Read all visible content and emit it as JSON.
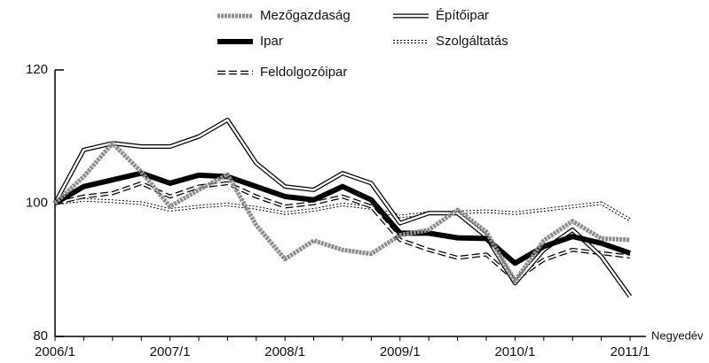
{
  "chart_data": {
    "type": "line",
    "x_label": "Negyedév",
    "categories": [
      "2006/1",
      null,
      null,
      null,
      "2007/1",
      null,
      null,
      null,
      "2008/1",
      null,
      null,
      null,
      "2009/1",
      null,
      null,
      null,
      "2010/1",
      null,
      null,
      null,
      "2011/1"
    ],
    "ylim": [
      80,
      120
    ],
    "yticks": [
      80,
      100,
      120
    ],
    "series": [
      {
        "name": "Mezőgazdaság",
        "color": "#8c8c8c",
        "style": "dotted-thick",
        "values": [
          100,
          104,
          109,
          104.7,
          99.5,
          102,
          104.3,
          96.7,
          91.6,
          94.4,
          93,
          92.4,
          95.2,
          96,
          99,
          95.7,
          88.3,
          94.4,
          97.3,
          94.7,
          94.5
        ]
      },
      {
        "name": "Építőipar",
        "color": "#000000",
        "style": "double",
        "values": [
          100,
          108,
          109,
          108.5,
          108.5,
          110,
          112.5,
          106,
          102.5,
          102,
          104.5,
          103,
          97,
          98.5,
          98.5,
          95,
          88,
          93,
          96,
          92,
          86
        ]
      },
      {
        "name": "Ipar",
        "color": "#000000",
        "style": "thick",
        "values": [
          100,
          102.5,
          103.5,
          104.5,
          103,
          104.2,
          104,
          102.5,
          101,
          100.5,
          102.5,
          100.5,
          95.5,
          95.5,
          94.8,
          94.7,
          91,
          93.5,
          95,
          94,
          92.5
        ]
      },
      {
        "name": "Szolgáltatás",
        "color": "#000000",
        "style": "double-dotted",
        "values": [
          100,
          100.5,
          100.3,
          100,
          99,
          99.5,
          99.8,
          99.3,
          98.5,
          99,
          99.8,
          99.3,
          98,
          98.5,
          98.6,
          98.8,
          98.5,
          99,
          99.5,
          100,
          97.5
        ]
      },
      {
        "name": "Feldolgozóipar",
        "color": "#000000",
        "style": "double-dashed",
        "values": [
          100,
          101,
          101.5,
          103,
          101,
          102.5,
          103,
          101,
          99.5,
          100,
          101,
          99.5,
          94.5,
          93,
          91.8,
          92.3,
          88.5,
          91.5,
          93,
          92.5,
          92
        ]
      }
    ]
  }
}
